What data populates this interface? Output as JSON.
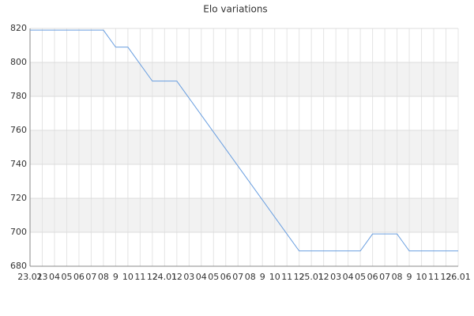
{
  "chart_data": {
    "type": "line",
    "title": "Elo variations",
    "categories": [
      "23.01",
      "23",
      "04",
      "05",
      "06",
      "07",
      "08",
      "9",
      "10",
      "11",
      "12",
      "24.01",
      "12",
      "03",
      "04",
      "05",
      "06",
      "07",
      "08",
      "9",
      "10",
      "11",
      "12",
      "25.01",
      "12",
      "03",
      "04",
      "05",
      "06",
      "07",
      "08",
      "9",
      "10",
      "11",
      "12",
      "26.01"
    ],
    "series": [
      {
        "color": "#6a9fe0",
        "values": [
          819,
          819,
          819,
          819,
          819,
          819,
          819,
          809,
          809,
          799,
          789,
          789,
          789,
          779,
          769,
          759,
          749,
          739,
          729,
          719,
          709,
          699,
          689,
          689,
          689,
          689,
          689,
          689,
          699,
          699,
          699,
          689,
          689,
          689,
          689,
          689
        ]
      }
    ],
    "ylim": [
      680,
      820
    ],
    "yticks": [
      680,
      700,
      720,
      740,
      760,
      780,
      800,
      820
    ],
    "grid": true
  }
}
